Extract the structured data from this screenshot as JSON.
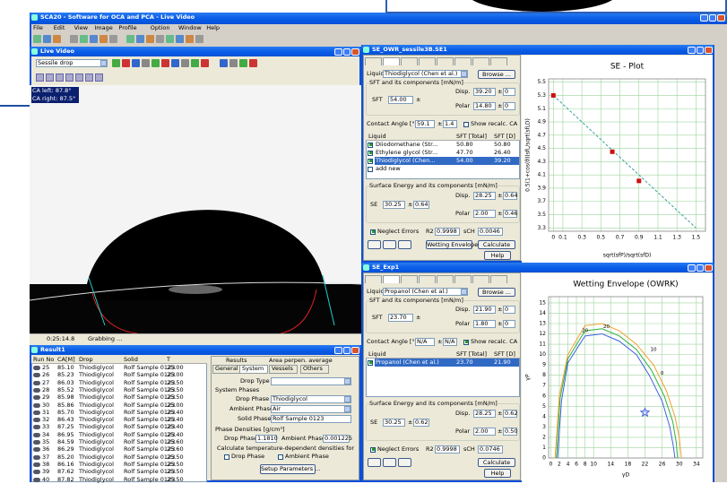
{
  "app": {
    "title": "SCA20 - Software for OCA and PCA - Live Video",
    "menu": [
      "File",
      "Edit",
      "View",
      "Image",
      "Profile",
      "Option",
      "Window",
      "Help"
    ]
  },
  "live_video": {
    "title": "Live Video",
    "mode": "Sessile drop",
    "ca_left": "CA left: 87.8°",
    "ca_right": "CA right: 87.5°",
    "status": {
      "time": "0:25:14.8",
      "state": "Grabbing ..."
    }
  },
  "result": {
    "title": "Result1",
    "columns": [
      "Run No",
      "CA[M]",
      "Drop",
      "Solid",
      "T"
    ],
    "rows": [
      [
        "25",
        "85.10",
        "Thiodiglycol",
        "Rolf Sample 0123",
        "25.00"
      ],
      [
        "26",
        "85.23",
        "Thiodiglycol",
        "Rolf Sample 0123",
        "25.00"
      ],
      [
        "27",
        "86.03",
        "Thiodiglycol",
        "Rolf Sample 0123",
        "25.50"
      ],
      [
        "28",
        "85.52",
        "Thiodiglycol",
        "Rolf Sample 0123",
        "25.50"
      ],
      [
        "29",
        "85.98",
        "Thiodiglycol",
        "Rolf Sample 0123",
        "25.50"
      ],
      [
        "30",
        "85.86",
        "Thiodiglycol",
        "Rolf Sample 0123",
        "25.00"
      ],
      [
        "31",
        "85.70",
        "Thiodiglycol",
        "Rolf Sample 0123",
        "25.40"
      ],
      [
        "32",
        "86.43",
        "Thiodiglycol",
        "Rolf Sample 0123",
        "25.40"
      ],
      [
        "33",
        "87.25",
        "Thiodiglycol",
        "Rolf Sample 0123",
        "25.40"
      ],
      [
        "34",
        "86.95",
        "Thiodiglycol",
        "Rolf Sample 0123",
        "25.40"
      ],
      [
        "35",
        "84.59",
        "Thiodiglycol",
        "Rolf Sample 0123",
        "25.60"
      ],
      [
        "36",
        "86.29",
        "Thiodiglycol",
        "Rolf Sample 0123",
        "25.60"
      ],
      [
        "37",
        "85.20",
        "Thiodiglycol",
        "Rolf Sample 0123",
        "25.50"
      ],
      [
        "38",
        "86.16",
        "Thiodiglycol",
        "Rolf Sample 0123",
        "25.50"
      ],
      [
        "39",
        "87.62",
        "Thiodiglycol",
        "Rolf Sample 0123",
        "25.50"
      ],
      [
        "40",
        "87.82",
        "Thiodiglycol",
        "Rolf Sample 0123",
        "25.50"
      ]
    ],
    "tabs_top": [
      "Results",
      "Area perpen. average"
    ],
    "tabs": [
      "General",
      "System",
      "Vessels",
      "Others"
    ],
    "drop_type": "Drop Type",
    "system_phases": "System Phases",
    "drop_phase_label": "Drop Phase",
    "drop_phase": "Thiodiglycol",
    "ambient_phase_label": "Ambient Phase",
    "ambient_phase": "Air",
    "solid_phase_label": "Solid Phase",
    "solid_phase": "Rolf Sample 0123",
    "densities": "Phase Densities [g/cm³]",
    "drop_density_label": "Drop Phase",
    "drop_density": "1.1810",
    "ambient_density_label": "Ambient Phase",
    "ambient_density": "0.001225",
    "calc_temp": "Calculate temperature-dependent densities for",
    "calc_drop": "Drop Phase",
    "calc_ambient": "Ambient Phase",
    "setup": "Setup Parameters ..."
  },
  "se_window": {
    "title": "SE_OWR_sessile3B.SE1",
    "form": {
      "liquid_label": "Liquid",
      "liquid": "Thiodiglycol (Chen et al.)",
      "browse": "Browse ...",
      "sft_group": "SFT and its components [mN/m]",
      "sft_label": "SFT",
      "sft": "54.00",
      "pm": "±",
      "disp_label": "Disp.",
      "disp": "39.20",
      "disp_err": "0",
      "polar_label": "Polar",
      "polar": "14.80",
      "polar_err": "0",
      "ca_label": "Contact Angle [°]",
      "ca": "59.1",
      "ca_err": "1.4",
      "show_recalc": "Show recalc. CA",
      "show_recalc_checked": false,
      "table": {
        "columns": [
          "Liquid",
          "SFT [Total]",
          "SFT [D]"
        ],
        "rows": [
          [
            "Diiodomethane (Str...",
            "50.80",
            "50.80"
          ],
          [
            "Ethylene glycol (Str...",
            "47.70",
            "26.40"
          ],
          [
            "Thiodiglycol (Chen...",
            "54.00",
            "39.20"
          ],
          [
            "add new"
          ]
        ],
        "selected": 2
      },
      "se_group": "Surface Energy and its components [mN/m]",
      "se_label": "SE",
      "se": "30.25",
      "se_err": "0.64",
      "se_disp_label": "Disp.",
      "se_disp": "28.25",
      "se_disp_err": "0.64",
      "se_polar_label": "Polar",
      "se_polar": "2.00",
      "se_polar_err": "0.46",
      "neglect": "Neglect Errors",
      "neglect_checked": true,
      "r2_label": "R2",
      "r2": "0.9998",
      "sch_label": "sCH",
      "sch": "0.0046",
      "wetting": "Wetting Envelope",
      "calculate": "Calculate",
      "help": "Help"
    },
    "plot": {
      "title": "SE - Plot",
      "x_label": "sqrt(sfP)/sqrt(sfD)",
      "y_label": "0.5(1+cos(θ))sfL/sqrt(sfLD)",
      "xlim": [
        -0.05,
        1.6
      ],
      "ylim": [
        3.25,
        5.55
      ],
      "xticks": [
        0,
        0.1,
        0.3,
        0.5,
        0.7,
        0.9,
        1.1,
        1.3,
        1.5
      ],
      "yticks": [
        3.3,
        3.5,
        3.7,
        3.9,
        4.1,
        4.3,
        4.5,
        4.7,
        4.9,
        5.1,
        5.3,
        5.5
      ],
      "points": {
        "x": [
          0,
          0.62,
          0.9
        ],
        "y": [
          5.3,
          4.45,
          4.01
        ],
        "color": "#cc1111"
      },
      "fit_line": {
        "x": [
          0,
          1.5
        ],
        "y": [
          5.3,
          3.3
        ],
        "color": "#3aa0a0"
      }
    }
  },
  "we_window": {
    "title": "SE_Exp1",
    "form": {
      "liquid_label": "Liquid",
      "liquid": "Propanol (Chen et al.)",
      "browse": "Browse ...",
      "sft_group": "SFT and its components [mN/m]",
      "sft_label": "SFT",
      "sft": "23.70",
      "pm": "±",
      "disp_label": "Disp.",
      "disp": "21.90",
      "disp_err": "0",
      "polar_label": "Polar",
      "polar": "1.80",
      "polar_err": "0",
      "ca_label": "Contact Angle [°]",
      "ca": "N/A",
      "ca_err": "N/A",
      "show_recalc": "Show recalc. CA",
      "show_recalc_checked": true,
      "table": {
        "columns": [
          "Liquid",
          "SFT [Total]",
          "SFT [D]"
        ],
        "rows": [
          [
            "Propanol (Chen et al.)",
            "23.70",
            "21.90"
          ]
        ],
        "selected": 0
      },
      "se_group": "Surface Energy and its components [mN/m]",
      "se_label": "SE",
      "se": "30.25",
      "se_err": "0.62",
      "se_disp_label": "Disp.",
      "se_disp": "28.25",
      "se_disp_err": "0.62",
      "se_polar_label": "Polar",
      "se_polar": "2.00",
      "se_polar_err": "0.50",
      "neglect": "Neglect Errors",
      "neglect_checked": true,
      "r2_label": "R2",
      "r2": "0.9998",
      "sch_label": "sCH",
      "sch": "0.0746",
      "calculate": "Calculate",
      "help": "Help"
    },
    "plot": {
      "title": "Wetting Envelope (OWRK)",
      "x_label": "γD",
      "y_label": "γP",
      "xlim": [
        -0.5,
        35.5
      ],
      "ylim": [
        0,
        15.6
      ],
      "xticks": [
        0,
        2,
        4,
        6,
        8,
        10,
        14,
        18,
        22,
        26,
        30,
        34
      ],
      "yticks": [
        0,
        1,
        2,
        3,
        4,
        5,
        6,
        7,
        8,
        9,
        10,
        11,
        12,
        13,
        14,
        15
      ],
      "contours": [
        {
          "color": "#f0a030",
          "x": [
            1,
            2,
            4,
            8,
            12,
            16,
            20,
            24,
            27,
            29,
            30,
            30.5
          ],
          "y": [
            0,
            6,
            10,
            12.8,
            13,
            12.3,
            11,
            9,
            6.5,
            4,
            2,
            0
          ]
        },
        {
          "color": "#30b040",
          "x": [
            1.3,
            2.2,
            4,
            8,
            12,
            16,
            20,
            23.5,
            26.5,
            28.5,
            29.3,
            29.6
          ],
          "y": [
            0,
            5.8,
            9.6,
            12.3,
            12.5,
            11.8,
            10.5,
            8.5,
            6,
            3.5,
            1.5,
            0
          ]
        },
        {
          "color": "#4060e0",
          "x": [
            1.6,
            2.5,
            4,
            8,
            12,
            16,
            20,
            23,
            26,
            27.8,
            28.6,
            29
          ],
          "y": [
            0,
            5.5,
            9.2,
            11.8,
            12,
            11.3,
            10,
            8,
            5.5,
            3,
            1.2,
            0
          ]
        }
      ],
      "contour_labels": [
        "20",
        "20",
        "10",
        "0"
      ],
      "target": {
        "x": 22,
        "y": 4.4,
        "color": "#3050d0"
      }
    }
  }
}
